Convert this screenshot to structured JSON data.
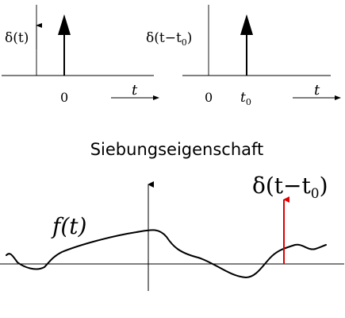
{
  "panel_left": {
    "label_delta": "δ(t)",
    "tick_zero": "0",
    "axis_t": "t"
  },
  "panel_right": {
    "label_delta_shifted": "δ(t−t",
    "label_delta_sub": "0",
    "label_delta_close": ")",
    "tick_zero": "0",
    "tick_t0": "t",
    "tick_t0_sub": "0",
    "axis_t": "t"
  },
  "heading": "Siebungseigenschaft",
  "bottom_plot": {
    "function_label": "f(t)",
    "impulse_label": "δ(t−t",
    "impulse_sub": "0",
    "impulse_close": ")",
    "impulse_color": "#dd0000",
    "curve_color": "#000000"
  }
}
